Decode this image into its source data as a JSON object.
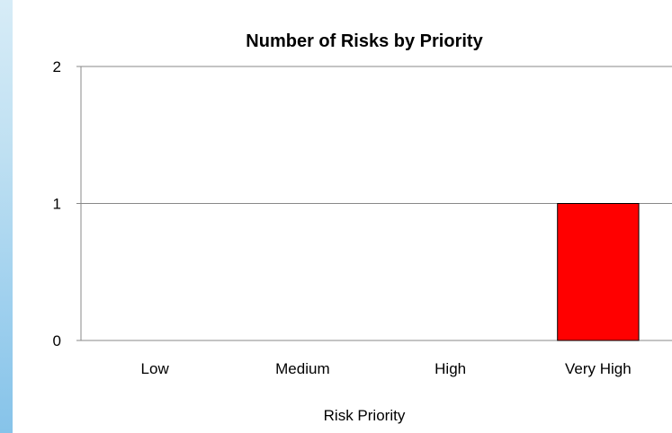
{
  "chart_data": {
    "type": "bar",
    "title": "Number of Risks by Priority",
    "xlabel": "Risk Priority",
    "ylabel": "",
    "categories": [
      "Low",
      "Medium",
      "High",
      "Very High"
    ],
    "values": [
      0,
      0,
      0,
      1
    ],
    "ylim": [
      0,
      2
    ],
    "yticks": [
      "0",
      "1",
      "2"
    ],
    "grid": true,
    "legend": "none",
    "bar_color": "#ff0000",
    "bar_outline": "#000000",
    "gridline_color": "#888888",
    "axis_color": "#888888"
  }
}
